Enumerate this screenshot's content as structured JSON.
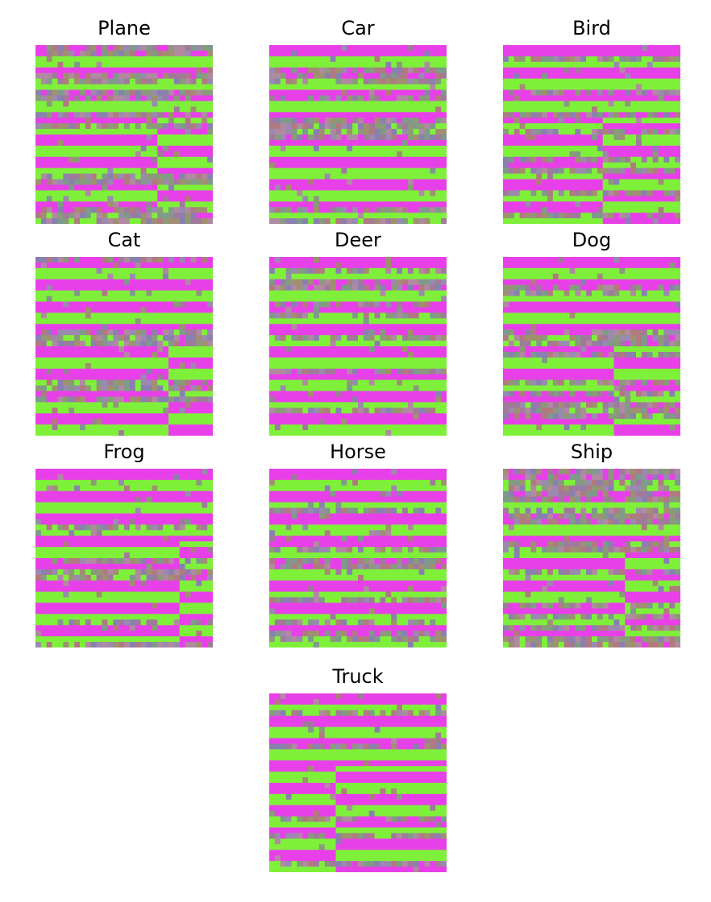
{
  "figure": {
    "panels": [
      {
        "label": "Plane",
        "pattern": "horizontal-stripes-plane"
      },
      {
        "label": "Car",
        "pattern": "horizontal-stripes-car"
      },
      {
        "label": "Bird",
        "pattern": "horizontal-stripes-bird"
      },
      {
        "label": "Cat",
        "pattern": "horizontal-stripes-cat"
      },
      {
        "label": "Deer",
        "pattern": "horizontal-stripes-deer"
      },
      {
        "label": "Dog",
        "pattern": "horizontal-stripes-dog"
      },
      {
        "label": "Frog",
        "pattern": "horizontal-stripes-frog"
      },
      {
        "label": "Horse",
        "pattern": "horizontal-stripes-horse"
      },
      {
        "label": "Ship",
        "pattern": "horizontal-stripes-ship"
      },
      {
        "label": "Truck",
        "pattern": "horizontal-stripes-truck"
      }
    ],
    "colors": {
      "magenta": "#e840e8",
      "green": "#7ff03a",
      "noise": "#9a8a8a",
      "background": "#ffffff"
    }
  }
}
